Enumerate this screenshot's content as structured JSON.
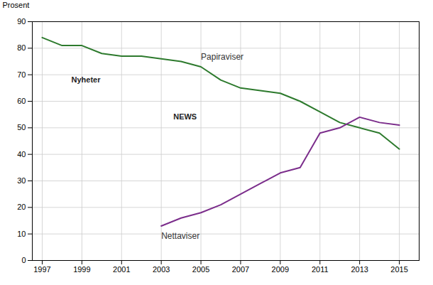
{
  "chart_data": {
    "type": "line",
    "y_label": "Prosent",
    "x": [
      1997,
      1998,
      1999,
      2000,
      2001,
      2002,
      2003,
      2004,
      2005,
      2006,
      2007,
      2008,
      2009,
      2010,
      2011,
      2012,
      2013,
      2014,
      2015
    ],
    "series": [
      {
        "name": "Papiraviser",
        "color": "#2d7a2d",
        "values": [
          84,
          81,
          81,
          78,
          77,
          77,
          76,
          75,
          73,
          68,
          65,
          64,
          63,
          60,
          56,
          52,
          50,
          48,
          42
        ]
      },
      {
        "name": "Nettaviser",
        "color": "#7b2d8b",
        "values": [
          null,
          null,
          null,
          null,
          null,
          null,
          13,
          16,
          18,
          21,
          25,
          29,
          33,
          35,
          48,
          50,
          54,
          52,
          51
        ]
      }
    ],
    "xlim": [
      1996.5,
      2016.0
    ],
    "xticks": [
      1997,
      1999,
      2001,
      2003,
      2005,
      2007,
      2009,
      2011,
      2013,
      2015
    ],
    "ylim": [
      0,
      90
    ],
    "yticks": [
      0,
      10,
      20,
      30,
      40,
      50,
      60,
      70,
      80,
      90
    ],
    "grid": true,
    "annotations": [
      {
        "text": "Nyheter",
        "x": 1999.2,
        "y": 68
      },
      {
        "text": "NEWS",
        "x": 2004.2,
        "y": 54
      }
    ]
  }
}
